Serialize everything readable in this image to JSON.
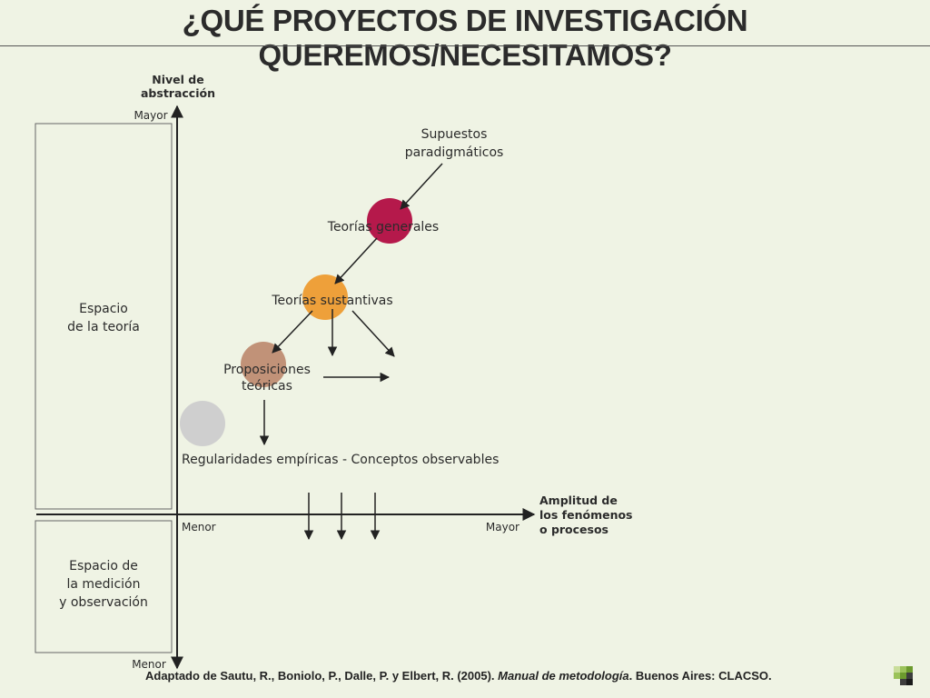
{
  "title": "¿QUÉ PROYECTOS DE INVESTIGACIÓN QUEREMOS/NECESITAMOS?",
  "y_axis": {
    "label_line1": "Nivel de",
    "label_line2": "abstracción",
    "top": "Mayor",
    "bottom": "Menor"
  },
  "x_axis": {
    "label_line1": "Amplitud de",
    "label_line2": "los fenómenos",
    "label_line3": "o procesos",
    "left": "Menor",
    "right": "Mayor"
  },
  "theory_space": {
    "line1": "Espacio",
    "line2": "de la teoría"
  },
  "measurement_space": {
    "line1": "Espacio de",
    "line2": "la medición",
    "line3": "y observación"
  },
  "nodes": {
    "supuestos": {
      "line1": "Supuestos",
      "line2": "paradigmáticos"
    },
    "generales": {
      "label": "Teorías generales",
      "color": "#b5194b"
    },
    "sustantivas": {
      "label": "Teorías sustantivas",
      "color": "#eea03a"
    },
    "proposiciones": {
      "line1": "Proposiciones",
      "line2": "teóricas",
      "color": "#c19278"
    },
    "empiricas": {
      "label": "Regularidades empíricas - Conceptos observables",
      "color": "#cfcfcf"
    }
  },
  "citation": {
    "prefix": "Adaptado de Sautu, R., Boniolo, P., Dalle, P. y Elbert, R. (2005). ",
    "book": "Manual de metodología",
    "suffix": ". Buenos Aires: CLACSO."
  },
  "colors": {
    "background": "#eff3e4",
    "text": "#2b2b2b",
    "line": "#333333"
  }
}
